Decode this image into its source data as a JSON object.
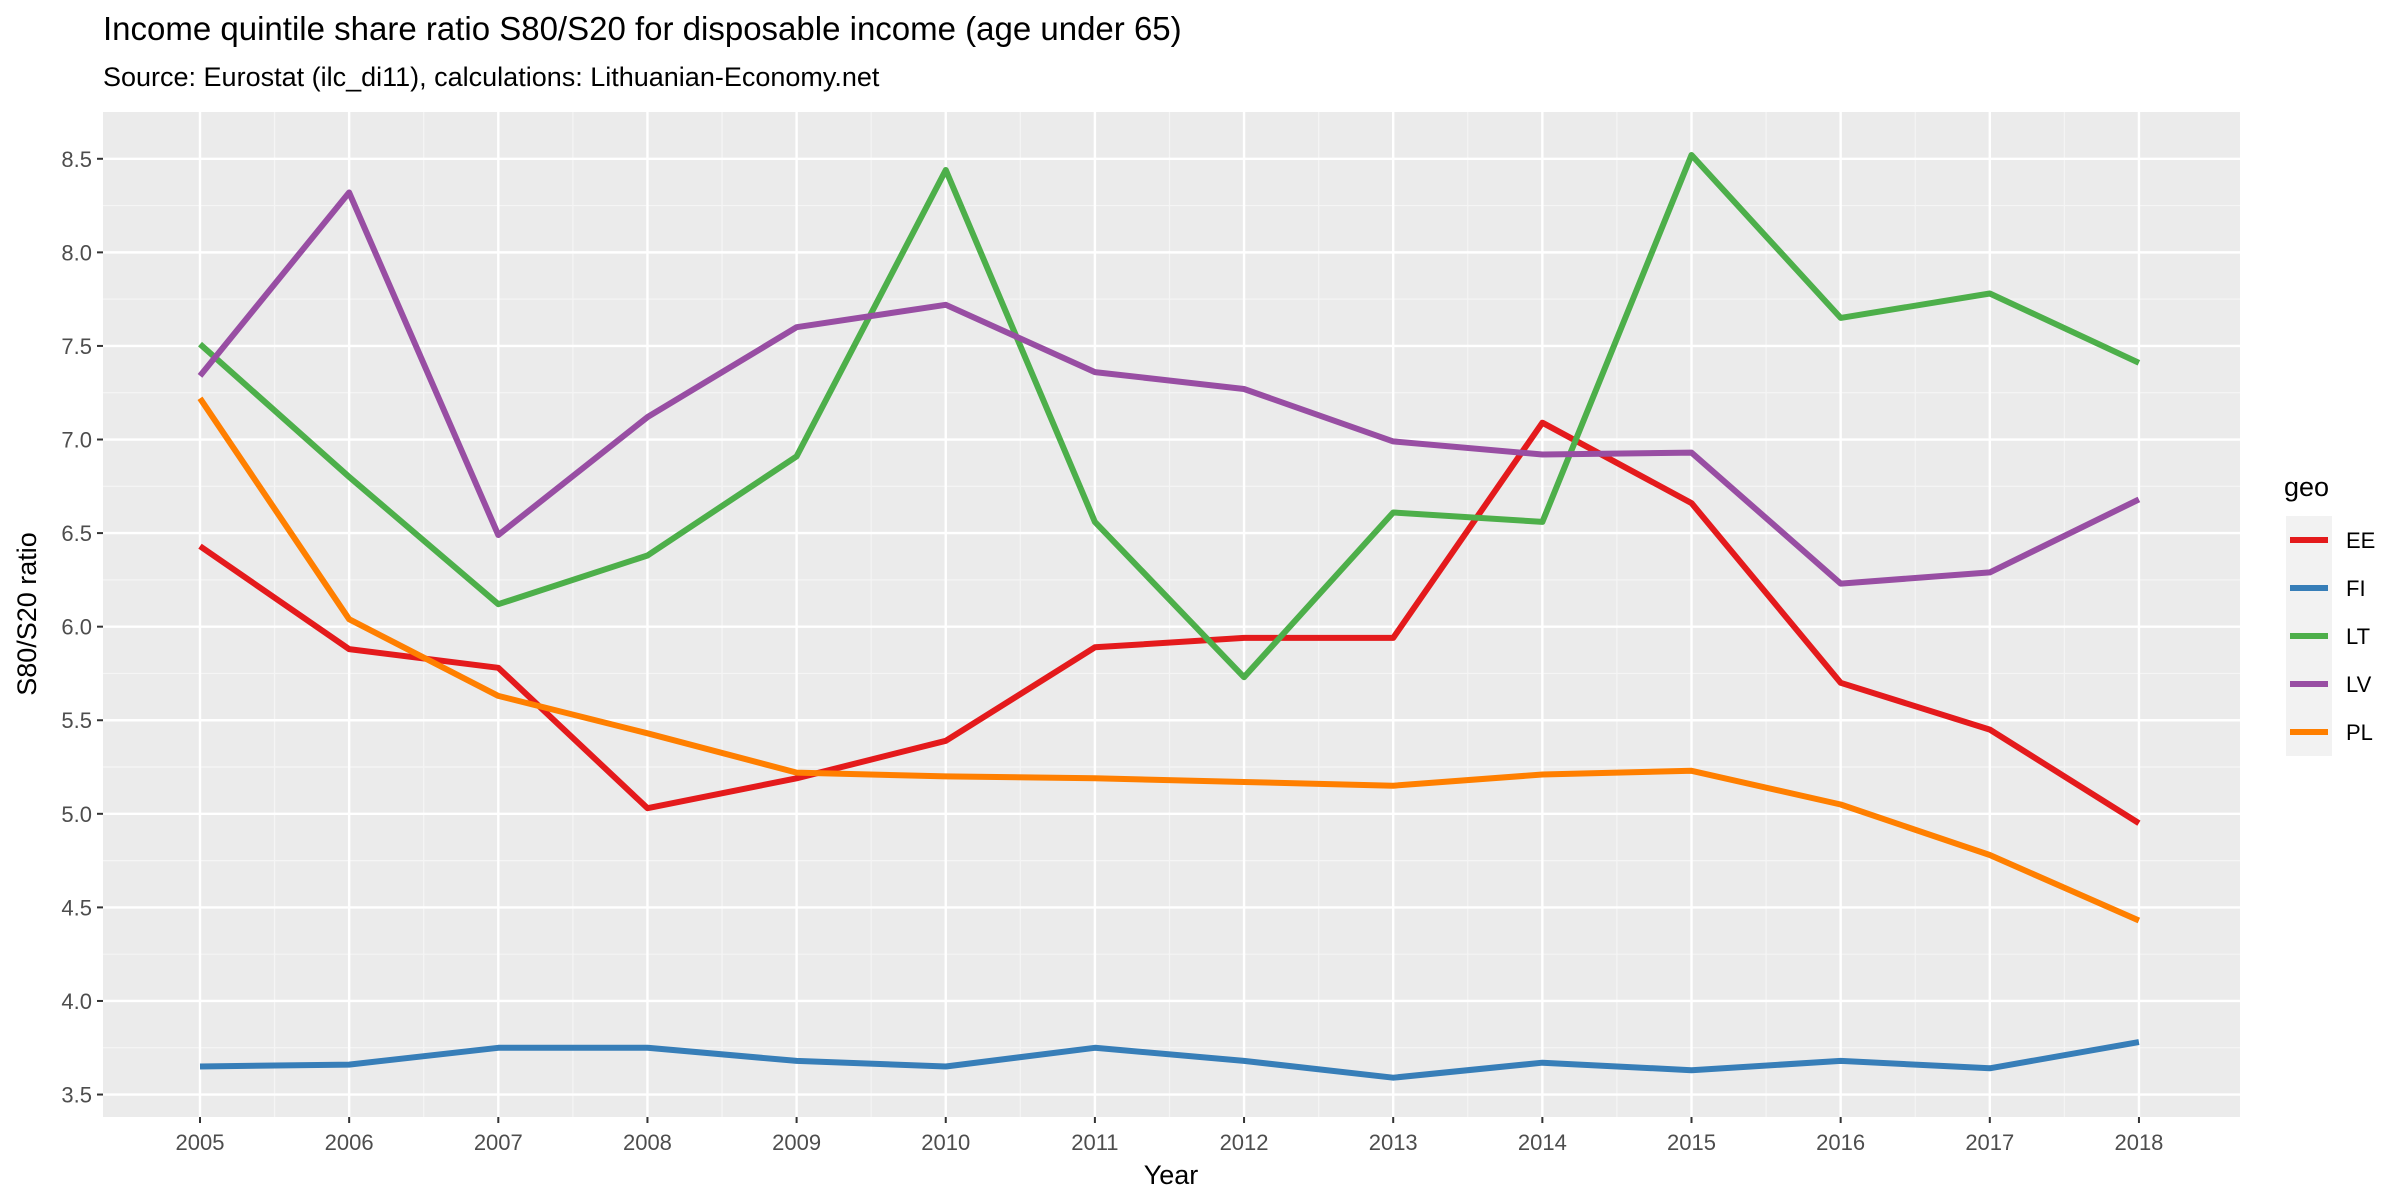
{
  "chart_data": {
    "type": "line",
    "title": "Income quintile share ratio S80/S20 for disposable income (age under 65)",
    "subtitle": "Source: Eurostat (ilc_di11), calculations: Lithuanian-Economy.net",
    "xlabel": "Year",
    "ylabel": "S80/S20 ratio",
    "x": [
      "2005",
      "2006",
      "2007",
      "2008",
      "2009",
      "2010",
      "2011",
      "2012",
      "2013",
      "2014",
      "2015",
      "2016",
      "2017",
      "2018"
    ],
    "ylim": [
      3.38,
      8.75
    ],
    "y_ticks": [
      "3.5",
      "4.0",
      "4.5",
      "5.0",
      "5.5",
      "6.0",
      "6.5",
      "7.0",
      "7.5",
      "8.0",
      "8.5"
    ],
    "grid": true,
    "legend_title": "geo",
    "legend_position": "right",
    "series": [
      {
        "name": "EE",
        "color": "#E41A1C",
        "values": [
          6.43,
          5.88,
          5.78,
          5.03,
          5.19,
          5.39,
          5.89,
          5.94,
          5.94,
          7.09,
          6.66,
          5.7,
          5.45,
          4.95
        ]
      },
      {
        "name": "FI",
        "color": "#377EB8",
        "values": [
          3.65,
          3.66,
          3.75,
          3.75,
          3.68,
          3.65,
          3.75,
          3.68,
          3.59,
          3.67,
          3.63,
          3.68,
          3.64,
          3.78
        ]
      },
      {
        "name": "LT",
        "color": "#4DAF4A",
        "values": [
          7.51,
          6.8,
          6.12,
          6.38,
          6.91,
          8.44,
          6.56,
          5.73,
          6.61,
          6.56,
          8.52,
          7.65,
          7.78,
          7.41
        ]
      },
      {
        "name": "LV",
        "color": "#984EA3",
        "values": [
          7.34,
          8.32,
          6.49,
          7.12,
          7.6,
          7.72,
          7.36,
          7.27,
          6.99,
          6.92,
          6.93,
          6.23,
          6.29,
          6.68
        ]
      },
      {
        "name": "PL",
        "color": "#FF7F00",
        "values": [
          7.22,
          6.04,
          5.63,
          5.43,
          5.22,
          5.2,
          5.19,
          5.17,
          5.15,
          5.21,
          5.23,
          5.05,
          4.78,
          4.43
        ]
      }
    ]
  }
}
